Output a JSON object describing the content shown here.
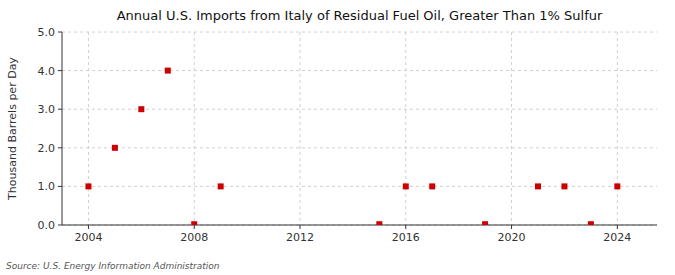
{
  "chart_data": {
    "type": "scatter",
    "title": "Annual U.S. Imports from Italy of Residual Fuel Oil, Greater Than 1% Sulfur",
    "y_label": "Thousand Barrels per Day",
    "source": "Source: U.S. Energy Information Administration",
    "x": [
      2004,
      2005,
      2006,
      2007,
      2008,
      2009,
      2015,
      2016,
      2017,
      2019,
      2021,
      2022,
      2023,
      2024
    ],
    "values": [
      1.0,
      2.0,
      3.0,
      4.0,
      0.02,
      1.0,
      0.02,
      1.0,
      1.0,
      0.02,
      1.0,
      1.0,
      0.02,
      1.0
    ],
    "color": "#cc0000",
    "marker": "square",
    "xlim": [
      2003.0,
      2025.5
    ],
    "ylim": [
      0.0,
      5.0
    ],
    "xticks": [
      2004,
      2008,
      2012,
      2016,
      2020,
      2024
    ],
    "yticks": [
      {
        "value": 0.0,
        "label": "0.0"
      },
      {
        "value": 1.0,
        "label": "1.0"
      },
      {
        "value": 2.0,
        "label": "2.0"
      },
      {
        "value": 3.0,
        "label": "3.0"
      },
      {
        "value": 4.0,
        "label": "4.0"
      },
      {
        "value": 5.0,
        "label": "5.0"
      }
    ],
    "grid": true
  }
}
